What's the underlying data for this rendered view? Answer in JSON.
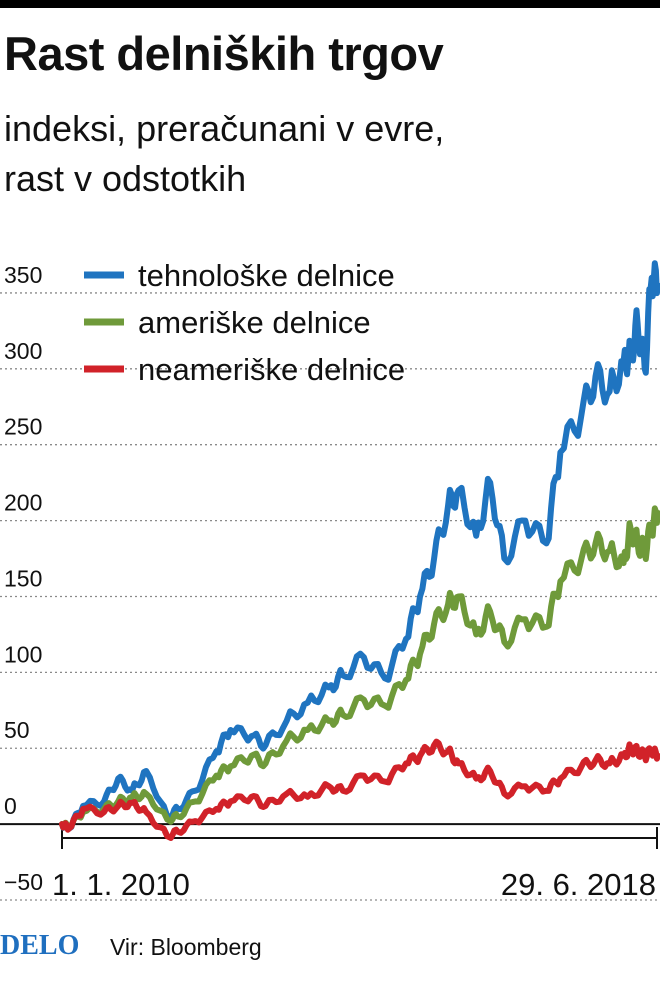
{
  "title": "Rast delniških trgov",
  "subtitle": [
    "indeksi, preračunani v evre,",
    "rast v odstotkih"
  ],
  "footer": {
    "logo": "DELO",
    "source": "Vir: Bloomberg"
  },
  "colors": {
    "tech": "#1f74c0",
    "us": "#6f9a3a",
    "nonus": "#d12229",
    "grid": "#8a8a8a",
    "axis": "#111111"
  },
  "chart_data": {
    "type": "line",
    "title": "Rast delniških trgov",
    "xlabel": "",
    "ylabel": "",
    "x_labels": [
      "1. 1. 2010",
      "29. 6. 2018"
    ],
    "x_range": [
      2010.0,
      2018.49
    ],
    "ylim": [
      -50,
      375
    ],
    "yticks": [
      -50,
      0,
      50,
      100,
      150,
      200,
      250,
      300,
      350
    ],
    "ytick_labels": [
      "−50",
      "0",
      "50",
      "100",
      "150",
      "200",
      "250",
      "300",
      "350"
    ],
    "legend": "top-left",
    "x": [
      2010.0,
      2010.1,
      2010.3,
      2010.6,
      2010.8,
      2011.0,
      2011.2,
      2011.5,
      2011.65,
      2011.9,
      2012.2,
      2012.4,
      2012.7,
      2012.9,
      2013.2,
      2013.5,
      2013.8,
      2014.0,
      2014.3,
      2014.6,
      2014.9,
      2015.1,
      2015.3,
      2015.5,
      2015.65,
      2015.9,
      2016.1,
      2016.3,
      2016.6,
      2016.9,
      2017.1,
      2017.4,
      2017.6,
      2017.8,
      2018.0,
      2018.1,
      2018.2,
      2018.3,
      2018.4,
      2018.49
    ],
    "series": [
      {
        "name": "tehnološke delnice",
        "color": "#1f74c0",
        "values": [
          0,
          -3,
          12,
          15,
          30,
          22,
          35,
          5,
          10,
          22,
          48,
          62,
          58,
          52,
          68,
          80,
          90,
          98,
          110,
          96,
          122,
          150,
          175,
          210,
          220,
          190,
          225,
          175,
          200,
          185,
          245,
          270,
          295,
          285,
          305,
          310,
          330,
          300,
          360,
          355
        ]
      },
      {
        "name": "ameriške delnice",
        "color": "#6f9a3a",
        "values": [
          0,
          -2,
          8,
          10,
          15,
          18,
          20,
          3,
          5,
          15,
          32,
          38,
          45,
          40,
          55,
          62,
          68,
          72,
          82,
          78,
          95,
          112,
          132,
          145,
          150,
          125,
          140,
          120,
          135,
          130,
          160,
          175,
          185,
          180,
          172,
          195,
          185,
          180,
          195,
          205
        ]
      },
      {
        "name": "neameriške delnice",
        "color": "#d12229",
        "values": [
          0,
          -3,
          10,
          8,
          12,
          14,
          8,
          -8,
          -5,
          2,
          10,
          15,
          18,
          12,
          20,
          18,
          25,
          22,
          32,
          28,
          40,
          45,
          52,
          48,
          40,
          30,
          35,
          20,
          25,
          22,
          30,
          38,
          42,
          40,
          45,
          50,
          48,
          45,
          48,
          45
        ]
      }
    ]
  }
}
